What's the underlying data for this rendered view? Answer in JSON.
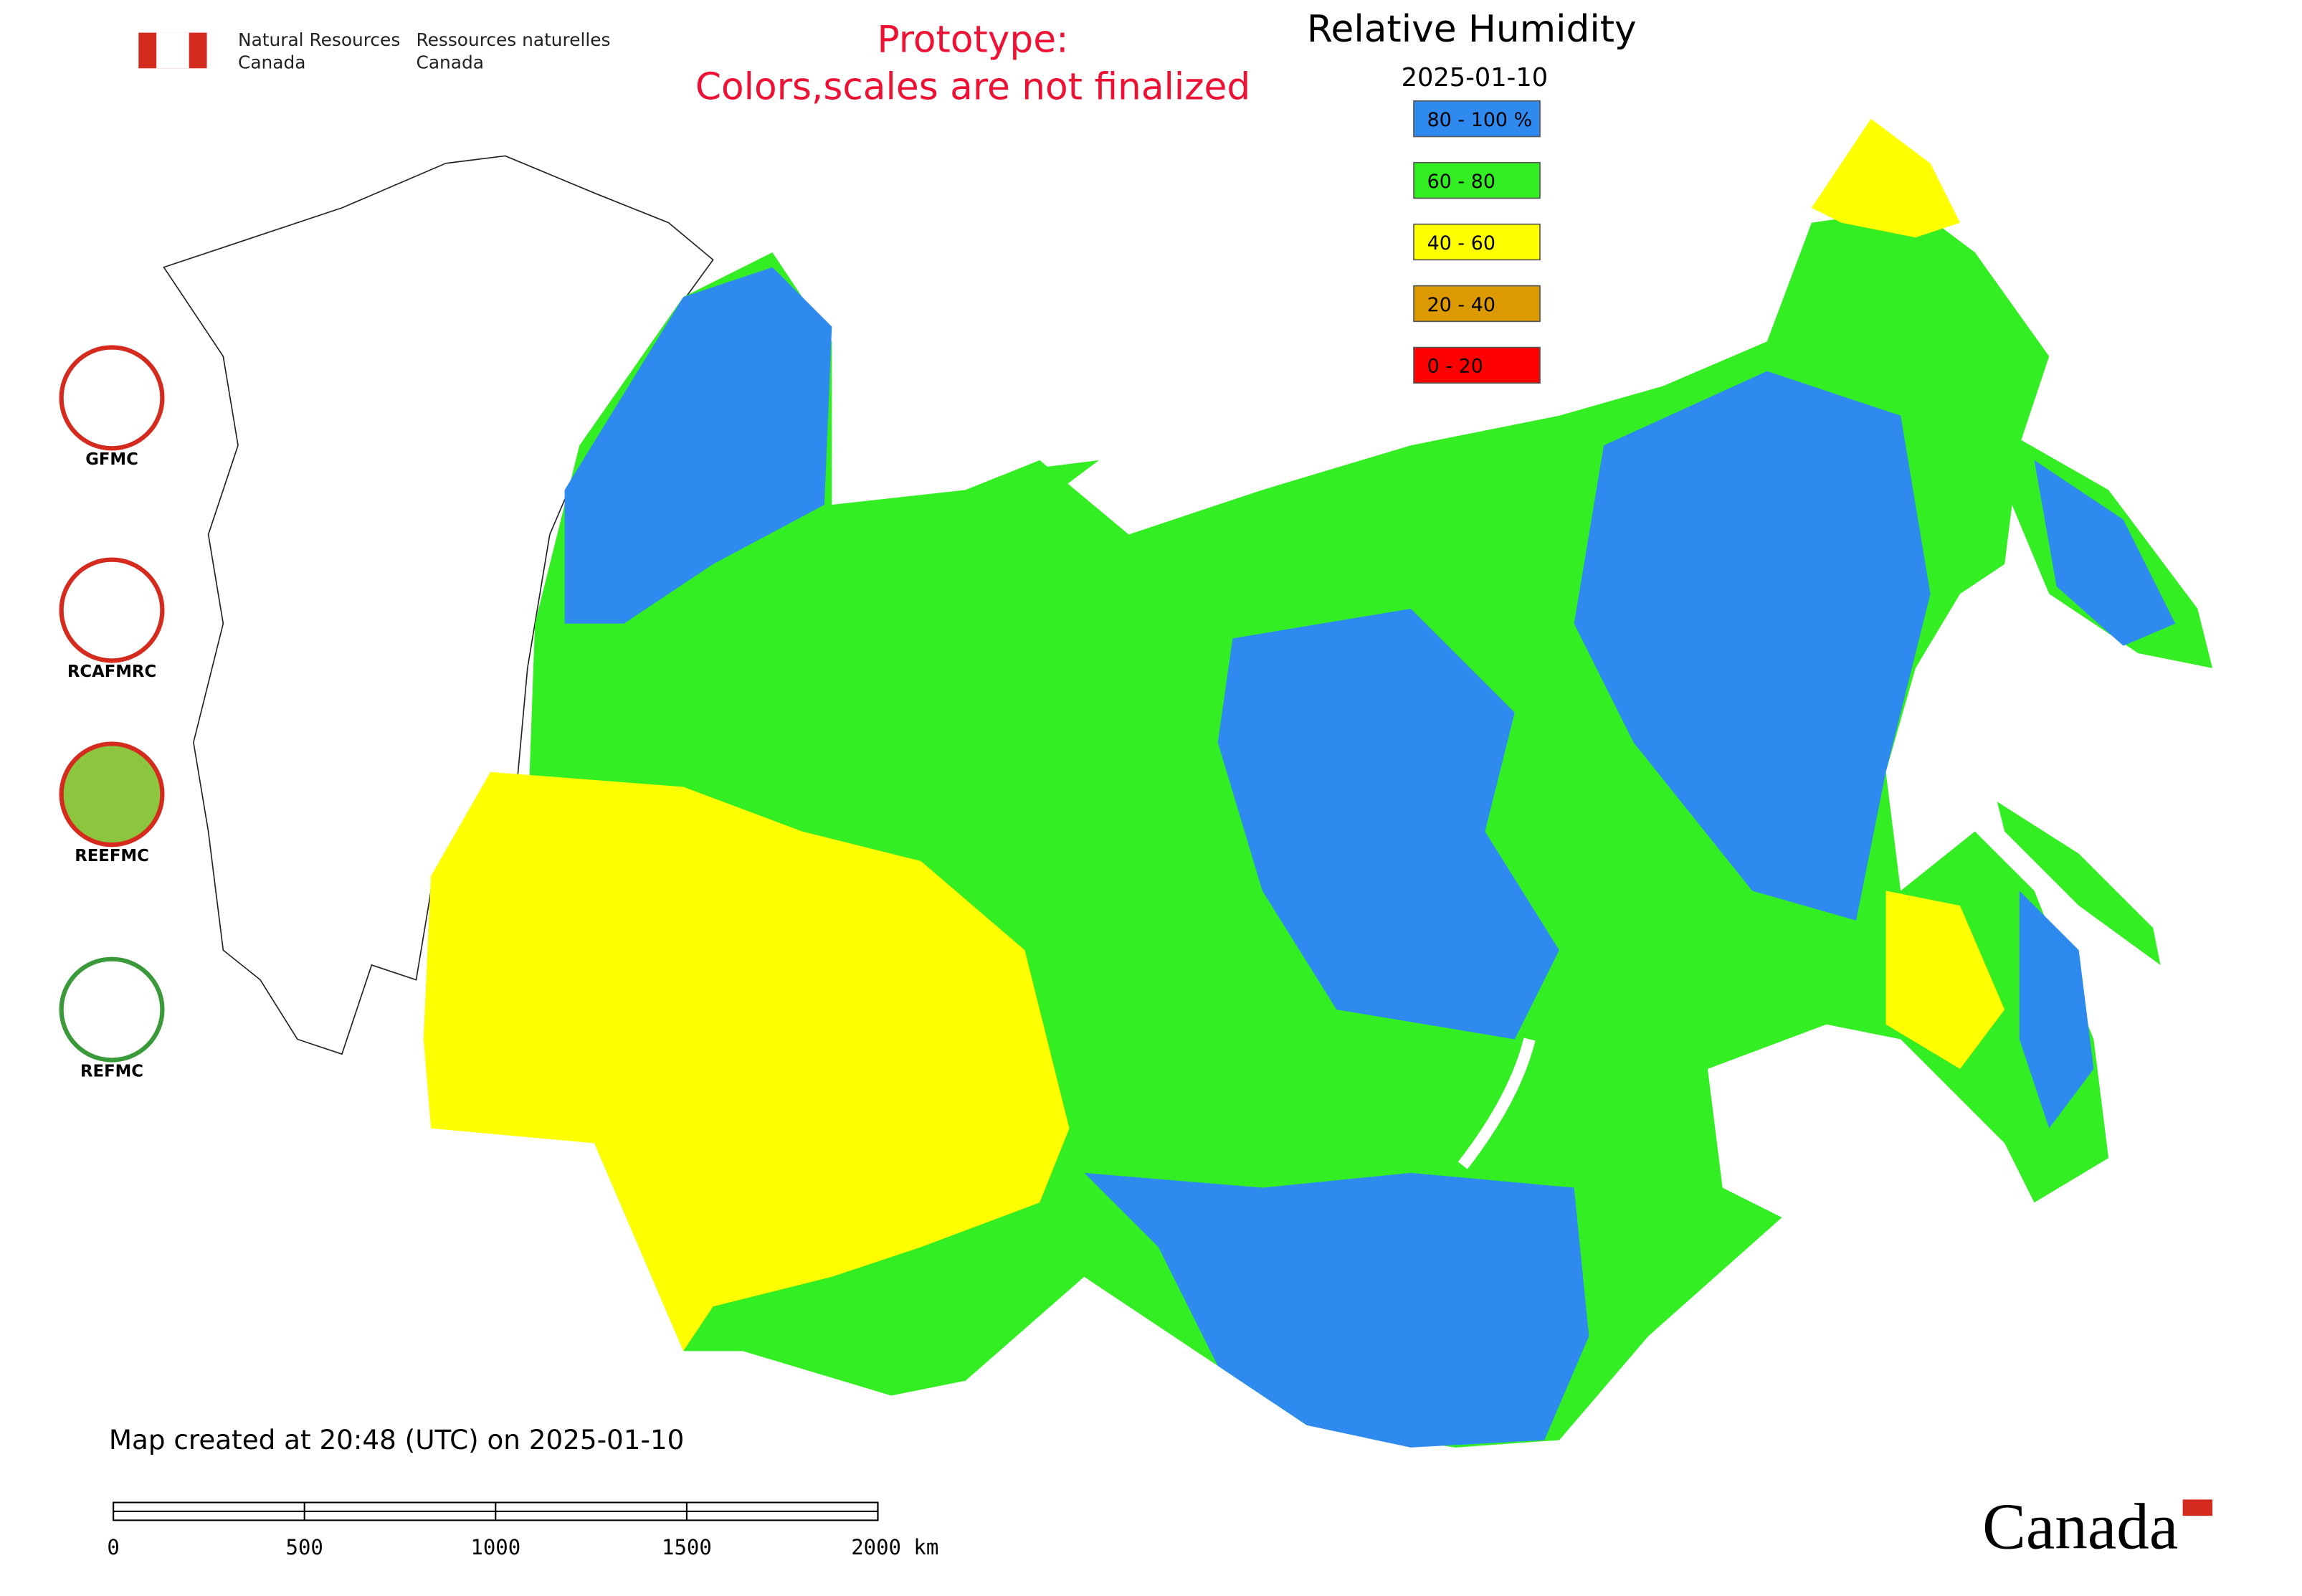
{
  "header": {
    "agency_en": [
      "Natural Resources",
      "Canada"
    ],
    "agency_fr": [
      "Ressources naturelles",
      "Canada"
    ],
    "prototype_note": [
      "Prototype:",
      "Colors,scales are not finalized"
    ],
    "title": "Relative Humidity",
    "date": "2025-01-10"
  },
  "legend": [
    {
      "label": "80 - 100 %",
      "color": "#2f8af0"
    },
    {
      "label": "60 - 80",
      "color": "#33ee22"
    },
    {
      "label": "40 - 60",
      "color": "#ffff00"
    },
    {
      "label": "20 - 40",
      "color": "#dd9900"
    },
    {
      "label": "0 - 20",
      "color": "#ff0000"
    }
  ],
  "logos": [
    "GFMC",
    "RCAFMRC",
    "REEFMC",
    "REFMC"
  ],
  "caption": "Map created at 20:48 (UTC) on 2025-01-10",
  "scale_bar": [
    "0",
    "500",
    "1000",
    "1500",
    "2000 km"
  ],
  "wordmark": "Canada"
}
